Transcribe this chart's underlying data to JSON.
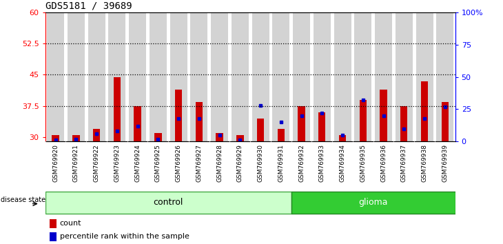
{
  "title": "GDS5181 / 39689",
  "samples": [
    "GSM769920",
    "GSM769921",
    "GSM769922",
    "GSM769923",
    "GSM769924",
    "GSM769925",
    "GSM769926",
    "GSM769927",
    "GSM769928",
    "GSM769929",
    "GSM769930",
    "GSM769931",
    "GSM769932",
    "GSM769933",
    "GSM769934",
    "GSM769935",
    "GSM769936",
    "GSM769937",
    "GSM769938",
    "GSM769939"
  ],
  "red_values": [
    30.5,
    30.5,
    32.0,
    44.5,
    37.5,
    31.0,
    41.5,
    38.5,
    31.0,
    30.5,
    34.5,
    32.0,
    37.5,
    36.0,
    30.5,
    39.0,
    41.5,
    37.5,
    43.5,
    38.5
  ],
  "blue_values": [
    1.5,
    2.0,
    6.0,
    8.0,
    12.0,
    2.0,
    18.0,
    18.0,
    5.0,
    1.0,
    28.0,
    15.0,
    20.0,
    22.0,
    5.0,
    32.0,
    20.0,
    10.0,
    18.0,
    27.0
  ],
  "ylim_left": [
    29,
    60
  ],
  "ylim_right": [
    0,
    100
  ],
  "left_ticks": [
    30,
    37.5,
    45,
    52.5,
    60
  ],
  "right_ticks": [
    0,
    25,
    50,
    75,
    100
  ],
  "right_tick_labels": [
    "0",
    "25",
    "50",
    "75",
    "100%"
  ],
  "left_tick_labels": [
    "30",
    "37.5",
    "45",
    "52.5",
    "60"
  ],
  "hlines": [
    37.5,
    45,
    52.5
  ],
  "bar_color": "#cc0000",
  "dot_color": "#0000cc",
  "col_bg_color": "#d3d3d3",
  "plot_bg": "#ffffff",
  "control_count": 12,
  "glioma_count": 8,
  "control_color": "#ccffcc",
  "glioma_color": "#33cc33",
  "disease_label": "disease state",
  "control_label": "control",
  "glioma_label": "glioma",
  "legend_count_label": "count",
  "legend_pct_label": "percentile rank within the sample"
}
